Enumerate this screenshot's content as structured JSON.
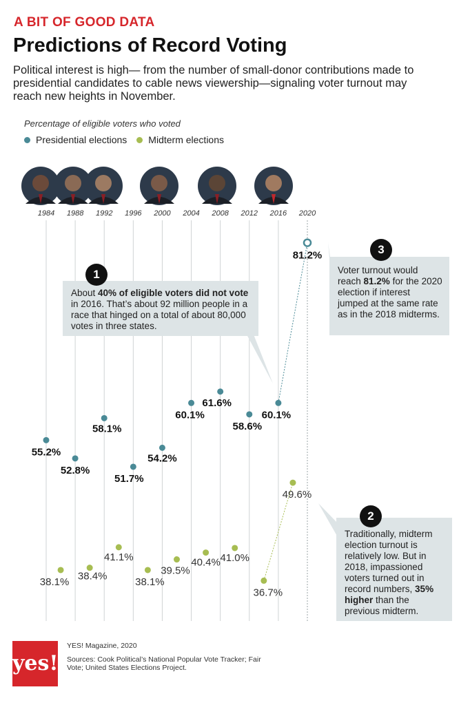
{
  "header": {
    "kicker": "A BIT OF GOOD DATA",
    "title": "Predictions of Record Voting",
    "subtitle": "Political interest is high— from the number of small-donor contributions made to presidential candidates to cable news viewership—signaling voter turnout may reach new heights in November."
  },
  "legend": {
    "axis_label": "Percentage of eligible voters who voted",
    "presidential": "Presidential elections",
    "midterm": "Midterm elections"
  },
  "colors": {
    "presidential": "#4a8a96",
    "midterm": "#a7bd52",
    "accent": "#d6262b",
    "box": "#dde4e6"
  },
  "chart_data": {
    "type": "scatter",
    "title": "Predictions of Record Voting",
    "ylabel": "Percentage of eligible voters who voted",
    "x_tick_labels": [
      "1984",
      "1988",
      "1992",
      "1996",
      "2000",
      "2004",
      "2008",
      "2012",
      "2016",
      "2020"
    ],
    "ylim": [
      35,
      82
    ],
    "series": [
      {
        "name": "Presidential elections",
        "x": [
          1984,
          1988,
          1992,
          1996,
          2000,
          2004,
          2008,
          2012,
          2016
        ],
        "values": [
          55.2,
          52.8,
          58.1,
          51.7,
          54.2,
          60.1,
          61.6,
          58.6,
          60.1
        ],
        "labels": [
          "55.2%",
          "52.8%",
          "58.1%",
          "51.7%",
          "54.2%",
          "60.1%",
          "61.6%",
          "58.6%",
          "60.1%"
        ]
      },
      {
        "name": "Midterm elections",
        "x": [
          1986,
          1990,
          1994,
          1998,
          2002,
          2006,
          2010,
          2014,
          2018
        ],
        "values": [
          38.1,
          38.4,
          41.1,
          38.1,
          39.5,
          40.4,
          41.0,
          36.7,
          49.6
        ],
        "labels": [
          "38.1%",
          "38.4%",
          "41.1%",
          "38.1%",
          "39.5%",
          "40.4%",
          "41.0%",
          "36.7%",
          "49.6%"
        ]
      },
      {
        "name": "",
        "x": [
          2020
        ],
        "values": [
          81.2
        ],
        "labels": [
          "81.2%"
        ],
        "projected": true
      }
    ],
    "grid": true
  },
  "annotations": {
    "one": {
      "number": "1",
      "lead": "About ",
      "bold": "40% of eligible voters did not vote",
      "rest": " in 2016. That’s about 92 million people in a race that hinged on a total of about 80,000 votes in three states."
    },
    "two": {
      "number": "2",
      "lead": "Traditionally, midterm election turnout is relatively low. But in 2018, impassioned voters turned out in record numbers, ",
      "bold": "35% higher",
      "rest": " than the previous midterm."
    },
    "three": {
      "number": "3",
      "lead": "Voter turnout would reach ",
      "bold": "81.2%",
      "rest": " for the 2020 election if interest jumped at the same rate as in the 2018 midterms."
    }
  },
  "footer": {
    "logo": "yes!",
    "publication": "YES! Magazine, 2020",
    "sources": "Sources: Cook Political’s National Popular Vote Tracker; Fair Vote; United States Elections Project."
  }
}
